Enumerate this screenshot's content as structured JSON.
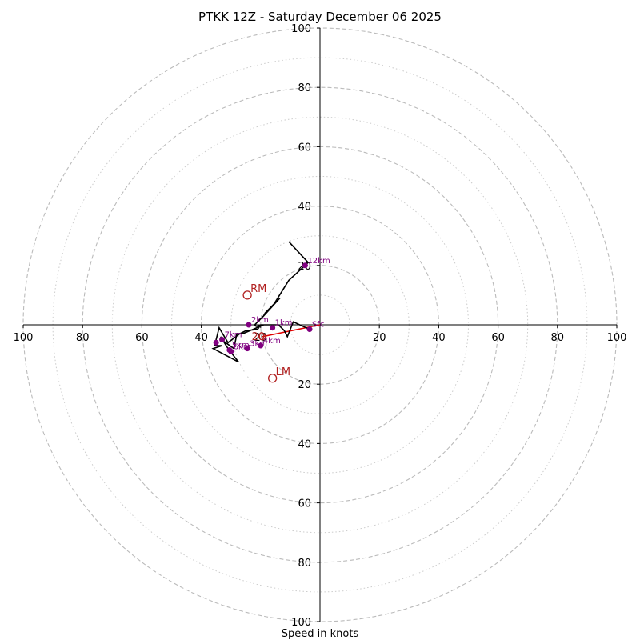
{
  "chart_data": {
    "type": "hodograph",
    "title": "PTKK 12Z - Saturday December 06 2025",
    "xlabel": "Speed in knots",
    "range": [
      -100,
      100
    ],
    "ring_major": [
      20,
      40,
      60,
      80,
      100
    ],
    "ring_minor": [
      10,
      30,
      50,
      70,
      90
    ],
    "tick_labels": [
      "100",
      "80",
      "60",
      "40",
      "20"
    ],
    "colors": {
      "trace": "#000000",
      "height": "#800080",
      "motion": "#b22222",
      "shear": "#e00000",
      "rings": "#bbbbbb"
    },
    "trace": [
      [
        -3.5,
        -1.5
      ],
      [
        -9,
        1
      ],
      [
        -11,
        -4
      ],
      [
        -12,
        -2
      ],
      [
        -14,
        0
      ],
      [
        -20,
        0
      ],
      [
        -21,
        -1.5
      ],
      [
        -25,
        -2
      ],
      [
        -27,
        -3
      ],
      [
        -31,
        -6
      ],
      [
        -34,
        -1
      ],
      [
        -35.5,
        -7
      ],
      [
        -33,
        -7
      ],
      [
        -36,
        -8
      ],
      [
        -27.5,
        -12.5
      ],
      [
        -31,
        -8
      ],
      [
        -33.5,
        -4
      ],
      [
        -32.5,
        -5.5
      ],
      [
        -29,
        -8
      ],
      [
        -28,
        -3
      ],
      [
        -26,
        -3
      ],
      [
        -22.5,
        -1.5
      ],
      [
        -19,
        0
      ],
      [
        -21.5,
        -0.5
      ],
      [
        -22,
        0
      ],
      [
        -19,
        3
      ],
      [
        -13.5,
        9
      ],
      [
        -19,
        3
      ],
      [
        -18.5,
        4
      ],
      [
        -15.5,
        7
      ],
      [
        -10.5,
        15
      ],
      [
        -5,
        20
      ],
      [
        -4,
        21
      ],
      [
        -10.5,
        28
      ]
    ],
    "heights": [
      {
        "label": "Sfc",
        "u": -3.5,
        "v": -1.5
      },
      {
        "label": "1km",
        "u": -16,
        "v": -1
      },
      {
        "label": "2km",
        "u": -24,
        "v": 0
      },
      {
        "label": "3km",
        "u": -24.5,
        "v": -8
      },
      {
        "label": "4km",
        "u": -20,
        "v": -7
      },
      {
        "label": "5km",
        "u": -30.5,
        "v": -8.5
      },
      {
        "label": "6km",
        "u": -30,
        "v": -9
      },
      {
        "label": "7km",
        "u": -33,
        "v": -5
      },
      {
        "label": "",
        "u": -35,
        "v": -6
      },
      {
        "label": "12km",
        "u": -5,
        "v": 20
      }
    ],
    "storm_motion": [
      {
        "label": "RM",
        "u": -24.5,
        "v": 10
      },
      {
        "label": "LM",
        "u": -16,
        "v": -18
      }
    ],
    "mean_wind": {
      "label": "20",
      "u": -19.5,
      "v": -4
    },
    "shear_vector": {
      "from": [
        -19.5,
        -4
      ],
      "to": [
        0,
        0
      ]
    }
  }
}
